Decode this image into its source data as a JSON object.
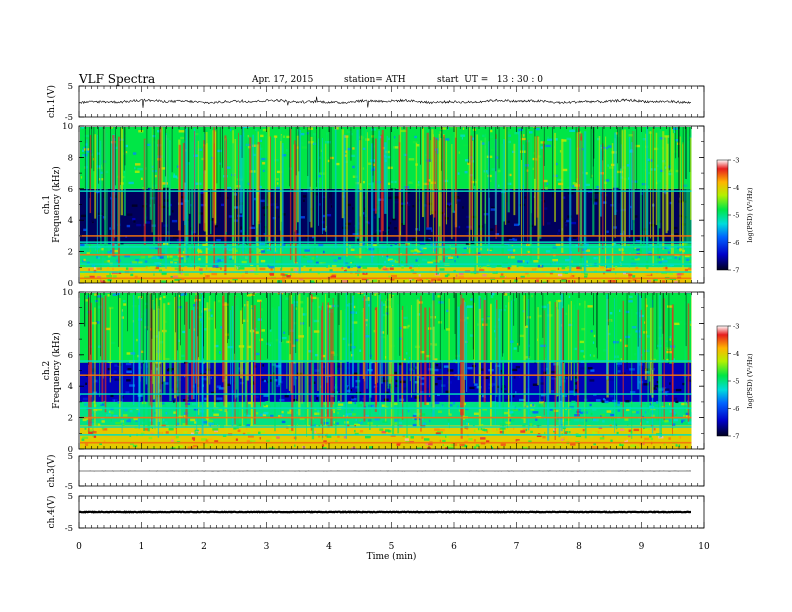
{
  "header": {
    "title": "VLF Spectra",
    "date": "Apr. 17, 2015",
    "station": "station= ATH",
    "start": "start  UT =   13 : 30 : 0"
  },
  "chart_data": [
    {
      "type": "line",
      "panel": "ch1-waveform",
      "ylabel": "ch.1(V)",
      "ylim": [
        -5,
        5
      ],
      "yticks": [
        "5",
        "-5"
      ],
      "series": [
        {
          "trace": "noisy waveform",
          "baseline": 0,
          "typical_amplitude": 0.4,
          "spike_amplitude": 2.5
        }
      ]
    },
    {
      "type": "heatmap",
      "panel": "ch1-spectrogram",
      "ylabel_top": "ch.1",
      "ylabel": "Frequency  (kHz)",
      "ylim": [
        0,
        10
      ],
      "yticks": [
        "0",
        "2",
        "4",
        "6",
        "8",
        "10"
      ],
      "xlim": [
        0,
        9.8
      ],
      "colorbar": {
        "label": "log(PSD) (V²/Hz)",
        "range": [
          -7,
          -3
        ],
        "ticks": [
          "-3",
          "-4",
          "-5",
          "-6",
          "-7"
        ]
      },
      "bands_khz": [
        {
          "from": 0,
          "to": 1.0,
          "logpsd": -4.0
        },
        {
          "from": 1.0,
          "to": 2.5,
          "logpsd": -5.0
        },
        {
          "from": 2.5,
          "to": 6.0,
          "logpsd": -6.8
        },
        {
          "from": 6.0,
          "to": 10.0,
          "logpsd": -4.8
        }
      ],
      "lines_khz": [
        0.3,
        0.7,
        1.2,
        1.8,
        2.3,
        2.6,
        3.0,
        5.85
      ]
    },
    {
      "type": "heatmap",
      "panel": "ch2-spectrogram",
      "ylabel_top": "ch.2",
      "ylabel": "Frequency  (kHz)",
      "ylim": [
        0,
        10
      ],
      "yticks": [
        "0",
        "2",
        "4",
        "6",
        "8",
        "10"
      ],
      "xlim": [
        0,
        9.8
      ],
      "colorbar": {
        "label": "log(PSD) (V²/Hz)",
        "range": [
          -7,
          -3
        ],
        "ticks": [
          "-3",
          "-4",
          "-5",
          "-6",
          "-7"
        ]
      },
      "bands_khz": [
        {
          "from": 0,
          "to": 1.5,
          "logpsd": -4.0
        },
        {
          "from": 1.5,
          "to": 3.0,
          "logpsd": -5.0
        },
        {
          "from": 3.0,
          "to": 5.5,
          "logpsd": -6.5
        },
        {
          "from": 5.5,
          "to": 10.0,
          "logpsd": -4.8
        }
      ],
      "lines_khz": [
        0.4,
        0.9,
        1.4,
        2.0,
        2.6,
        3.5,
        4.7,
        5.6
      ]
    },
    {
      "type": "line",
      "panel": "ch3-waveform",
      "ylabel": "ch.3(V)",
      "ylim": [
        -5,
        5
      ],
      "yticks": [
        "5",
        "-5"
      ],
      "series": [
        {
          "trace": "flat",
          "baseline": 0,
          "typical_amplitude": 0.02
        }
      ]
    },
    {
      "type": "line",
      "panel": "ch4-waveform",
      "ylabel": "ch.4(V)",
      "ylim": [
        -5,
        5
      ],
      "yticks": [
        "5",
        "-5"
      ],
      "series": [
        {
          "trace": "flat",
          "baseline": 0,
          "typical_amplitude": 0.1
        }
      ]
    }
  ],
  "x_axis": {
    "xlabel": "Time  (min)",
    "xlim": [
      0,
      10
    ],
    "ticks": [
      "0",
      "1",
      "2",
      "3",
      "4",
      "5",
      "6",
      "7",
      "8",
      "9",
      "10"
    ],
    "data_end": 9.8
  }
}
